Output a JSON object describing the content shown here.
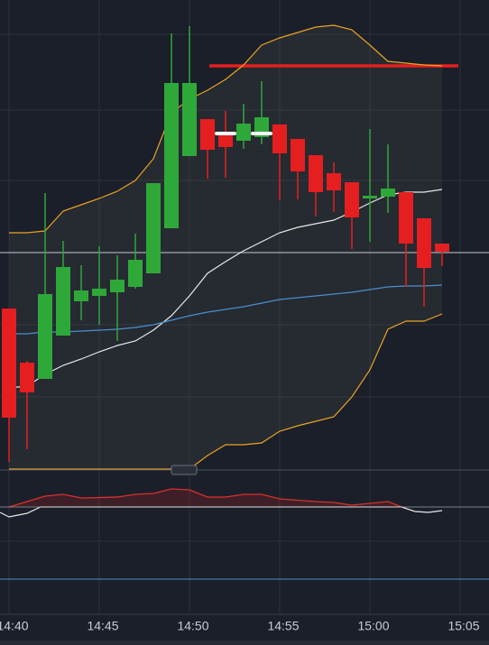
{
  "chart_data": {
    "type": "candlestick",
    "categories": [
      "14:40",
      null,
      null,
      null,
      null,
      "14:45",
      null,
      null,
      null,
      null,
      "14:50",
      null,
      null,
      null,
      null,
      "14:55",
      null,
      null,
      null,
      null,
      "15:00",
      null,
      null,
      null,
      null,
      "15:05"
    ],
    "open": [
      178,
      118,
      100,
      148,
      186,
      192,
      196,
      202,
      217,
      267,
      347,
      388,
      374,
      364,
      368,
      382,
      366,
      348,
      328,
      318,
      300,
      302,
      307,
      278,
      250,
      null
    ],
    "high": [
      178,
      120,
      306,
      253,
      226,
      247,
      237,
      261,
      317,
      483,
      491,
      388,
      397,
      405,
      430,
      382,
      366,
      348,
      340,
      318,
      377,
      360,
      307,
      278,
      250,
      null
    ],
    "low": [
      8,
      22,
      100,
      148,
      165,
      160,
      142,
      200,
      217,
      267,
      347,
      322,
      323,
      355,
      360,
      298,
      299,
      280,
      285,
      244,
      252,
      284,
      202,
      180,
      225,
      null
    ],
    "close": [
      57,
      85,
      194,
      224,
      198,
      200,
      210,
      232,
      317,
      428,
      428,
      354,
      357,
      383,
      390,
      350,
      330,
      307,
      309,
      279,
      303,
      311,
      250,
      223,
      241,
      null
    ],
    "up_color": "#2fa83a",
    "down_color": "#e51f1f",
    "series": [
      {
        "color": "#e8a325",
        "values": [
          262,
          262,
          264,
          286,
          293,
          300,
          308,
          320,
          344,
          395,
          410,
          420,
          432,
          448,
          470,
          478,
          484,
          490,
          492,
          487,
          470,
          452,
          450,
          448,
          447,
          null
        ]
      },
      {
        "color": "#e8a325",
        "values": [
          0,
          0,
          0,
          0,
          0,
          0,
          0,
          0,
          0,
          0,
          0,
          15,
          27,
          27,
          29,
          42,
          48,
          53,
          58,
          80,
          110,
          155,
          164,
          164,
          172,
          null
        ]
      },
      {
        "color": "#e8e8e8",
        "values": [
          90,
          92,
          105,
          115,
          122,
          130,
          137,
          142,
          154,
          170,
          192,
          217,
          230,
          242,
          252,
          262,
          268,
          272,
          276,
          285,
          295,
          304,
          307,
          307,
          310,
          null
        ]
      },
      {
        "color": "#4a8fd0",
        "values": [
          150,
          150,
          152,
          152,
          153,
          154,
          155,
          157,
          160,
          165,
          170,
          174,
          177,
          180,
          184,
          188,
          190,
          192,
          194,
          196,
          199,
          202,
          203,
          203,
          204,
          null
        ]
      }
    ],
    "hlines": [
      {
        "value": 240,
        "color": "#a5a9b0"
      },
      {
        "value": 447,
        "color": "#e51f1f"
      }
    ],
    "ylim": [
      0,
      520
    ]
  }
}
